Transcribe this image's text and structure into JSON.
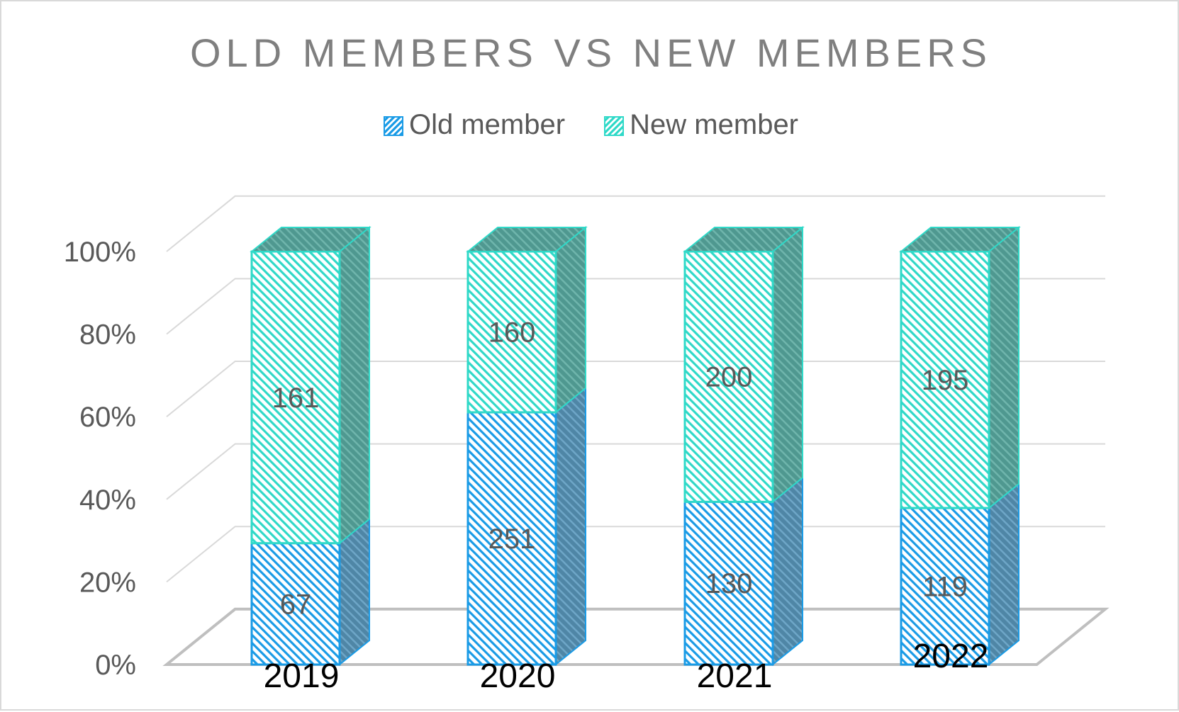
{
  "chart_data": {
    "type": "bar",
    "stacked": "percent",
    "three_d": true,
    "title": "OLD MEMBERS VS NEW MEMBERS",
    "categories": [
      "2019",
      "2020",
      "2021",
      "2022"
    ],
    "series": [
      {
        "name": "Old member",
        "values": [
          67,
          251,
          130,
          119
        ],
        "color": "#1a9be6"
      },
      {
        "name": "New member",
        "values": [
          161,
          160,
          200,
          195
        ],
        "color": "#2fd9c8"
      }
    ],
    "y_ticks": [
      "0%",
      "20%",
      "40%",
      "60%",
      "80%",
      "100%"
    ],
    "ylim": [
      0,
      100
    ],
    "grid": true,
    "legend_position": "top"
  },
  "colors": {
    "old_fill": "#cfe9fa",
    "old_stroke": "#1a9be6",
    "old_side": "#4f86a6",
    "new_fill": "#d4f7f2",
    "new_stroke": "#2fd9c8",
    "new_side": "#4f9890",
    "grid": "#d9d9d9",
    "text": "#595959"
  }
}
